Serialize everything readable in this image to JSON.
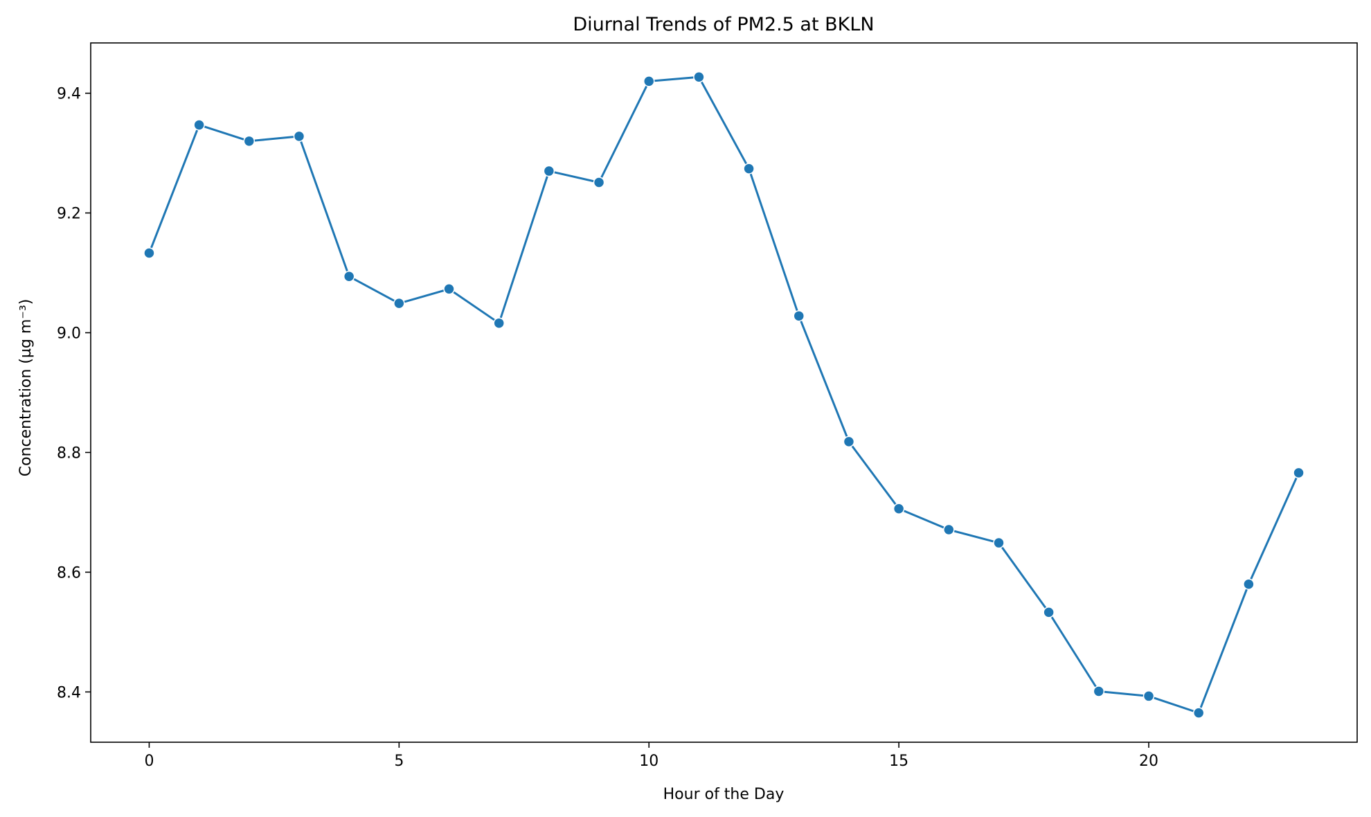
{
  "chart_data": {
    "type": "line",
    "title": "Diurnal Trends of PM2.5 at BKLN",
    "xlabel": "Hour of the Day",
    "ylabel": "Concentration (µg m⁻³)",
    "xlim": [
      -1.17,
      24.17
    ],
    "ylim": [
      8.316,
      9.484
    ],
    "xticks": [
      0,
      5,
      10,
      15,
      20
    ],
    "xtick_labels": [
      "0",
      "5",
      "10",
      "15",
      "20"
    ],
    "yticks": [
      8.4,
      8.6,
      8.8,
      9.0,
      9.2,
      9.4
    ],
    "ytick_labels": [
      "8.4",
      "8.6",
      "8.8",
      "9.0",
      "9.2",
      "9.4"
    ],
    "grid": false,
    "legend": "none",
    "color": "#1f77b4",
    "marker": "circle",
    "x": [
      0,
      1,
      2,
      3,
      4,
      5,
      6,
      7,
      8,
      9,
      10,
      11,
      12,
      13,
      14,
      15,
      16,
      17,
      18,
      19,
      20,
      21,
      22,
      23
    ],
    "series": [
      {
        "values": [
          9.133,
          9.347,
          9.32,
          9.328,
          9.094,
          9.049,
          9.073,
          9.016,
          9.27,
          9.251,
          9.42,
          9.427,
          9.274,
          9.028,
          8.818,
          8.706,
          8.671,
          8.649,
          8.533,
          8.401,
          8.393,
          8.365,
          8.58,
          8.766
        ]
      }
    ]
  }
}
